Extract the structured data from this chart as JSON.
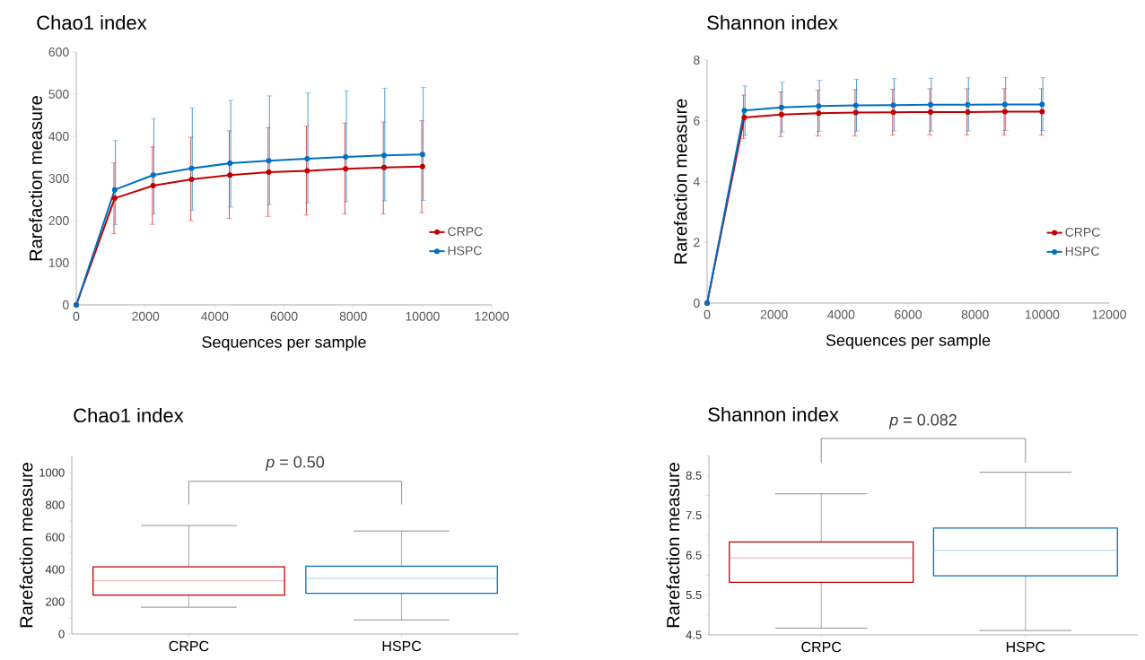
{
  "chart_data": [
    {
      "type": "line",
      "title": "Chao1 index",
      "xlabel": "Sequences per sample",
      "ylabel": "Rarefaction measure",
      "x": [
        0,
        1110,
        2220,
        3330,
        4440,
        5560,
        6670,
        7780,
        8890,
        10000
      ],
      "series": [
        {
          "name": "CRPC",
          "color": "#c00000",
          "values": [
            0,
            253,
            283,
            298,
            308,
            315,
            318,
            323,
            326,
            328
          ],
          "errors": [
            null,
            [
              169,
              337
            ],
            [
              191,
              375
            ],
            [
              200,
              398
            ],
            [
              205,
              413
            ],
            [
              210,
              421
            ],
            [
              213,
              424
            ],
            [
              216,
              431
            ],
            [
              216,
              434
            ],
            [
              219,
              437
            ]
          ]
        },
        {
          "name": "HSPC",
          "color": "#0070c0",
          "values": [
            0,
            273,
            308,
            324,
            336,
            342,
            347,
            351,
            355,
            357
          ],
          "errors": [
            null,
            [
              190,
              390
            ],
            [
              216,
              442
            ],
            [
              225,
              467
            ],
            [
              232,
              485
            ],
            [
              238,
              496
            ],
            [
              242,
              503
            ],
            [
              245,
              508
            ],
            [
              247,
              514
            ],
            [
              248,
              516
            ]
          ]
        }
      ],
      "xlim": [
        0,
        12000
      ],
      "xticks": [
        0,
        2000,
        4000,
        6000,
        8000,
        10000,
        12000
      ],
      "ylim": [
        0,
        600
      ],
      "yticks": [
        0,
        100,
        200,
        300,
        400,
        500,
        600
      ],
      "legend": "right",
      "marker": "circle",
      "line_style": "solid"
    },
    {
      "type": "line",
      "title": "Shannon index",
      "xlabel": "Sequences per sample",
      "ylabel": "Rarefaction measure",
      "x": [
        0,
        1110,
        2220,
        3330,
        4440,
        5560,
        6670,
        7780,
        8890,
        10000
      ],
      "series": [
        {
          "name": "CRPC",
          "color": "#c00000",
          "values": [
            0,
            6.11,
            6.21,
            6.25,
            6.27,
            6.28,
            6.29,
            6.29,
            6.3,
            6.3
          ],
          "errors": [
            null,
            [
              5.42,
              6.85
            ],
            [
              5.48,
              6.95
            ],
            [
              5.5,
              7.01
            ],
            [
              5.5,
              7.03
            ],
            [
              5.53,
              7.04
            ],
            [
              5.53,
              7.06
            ],
            [
              5.53,
              7.06
            ],
            [
              5.53,
              7.06
            ],
            [
              5.53,
              7.06
            ]
          ]
        },
        {
          "name": "HSPC",
          "color": "#0070c0",
          "values": [
            0,
            6.34,
            6.44,
            6.49,
            6.51,
            6.52,
            6.53,
            6.53,
            6.54,
            6.54
          ],
          "errors": [
            null,
            [
              5.52,
              7.15
            ],
            [
              5.63,
              7.27
            ],
            [
              5.65,
              7.33
            ],
            [
              5.66,
              7.37
            ],
            [
              5.67,
              7.39
            ],
            [
              5.67,
              7.4
            ],
            [
              5.67,
              7.42
            ],
            [
              5.68,
              7.42
            ],
            [
              5.68,
              7.42
            ]
          ]
        }
      ],
      "xlim": [
        0,
        12000
      ],
      "xticks": [
        0,
        2000,
        4000,
        6000,
        8000,
        10000,
        12000
      ],
      "ylim": [
        0,
        8
      ],
      "yticks": [
        0,
        2,
        4,
        6,
        8
      ],
      "legend": "right",
      "marker": "circle",
      "line_style": "solid"
    },
    {
      "type": "box",
      "title": "Chao1 index",
      "ylabel": "Rarefaction measure",
      "categories": [
        "CRPC",
        "HSPC"
      ],
      "colors": [
        "#c00000",
        "#0070c0"
      ],
      "boxes": [
        {
          "low": 166,
          "q1": 241,
          "median": 330,
          "q3": 416,
          "high": 672
        },
        {
          "low": 87,
          "q1": 252,
          "median": 345,
          "q3": 420,
          "high": 638
        }
      ],
      "ylim": [
        0,
        1100
      ],
      "yticks": [
        0,
        {
          "value": 100,
          "label": null
        },
        200,
        {
          "value": 300,
          "label": null
        },
        400,
        {
          "value": 500,
          "label": null
        },
        600,
        {
          "value": 700,
          "label": null
        },
        800,
        {
          "value": 900,
          "label": null
        },
        1000
      ],
      "annotations": [
        "*p* = 0.50"
      ]
    },
    {
      "type": "box",
      "title": "Shannon index",
      "ylabel": "Rarefaction measure",
      "categories": [
        "CRPC",
        "HSPC"
      ],
      "colors": [
        "#c00000",
        "#0070c0"
      ],
      "boxes": [
        {
          "low": 4.67,
          "q1": 5.82,
          "median": 6.43,
          "q3": 6.83,
          "high": 8.04
        },
        {
          "low": 4.61,
          "q1": 5.98,
          "median": 6.62,
          "q3": 7.18,
          "high": 8.58
        }
      ],
      "ylim": [
        4.5,
        9
      ],
      "yticks": [
        4.5,
        {
          "value": 5,
          "label": null
        },
        5.5,
        {
          "value": 6,
          "label": null
        },
        6.5,
        {
          "value": 7,
          "label": null
        },
        7.5,
        {
          "value": 8,
          "label": null
        },
        8.5,
        {
          "value": 9,
          "label": null
        }
      ],
      "annotations": [
        "*p* = 0.082"
      ]
    }
  ]
}
